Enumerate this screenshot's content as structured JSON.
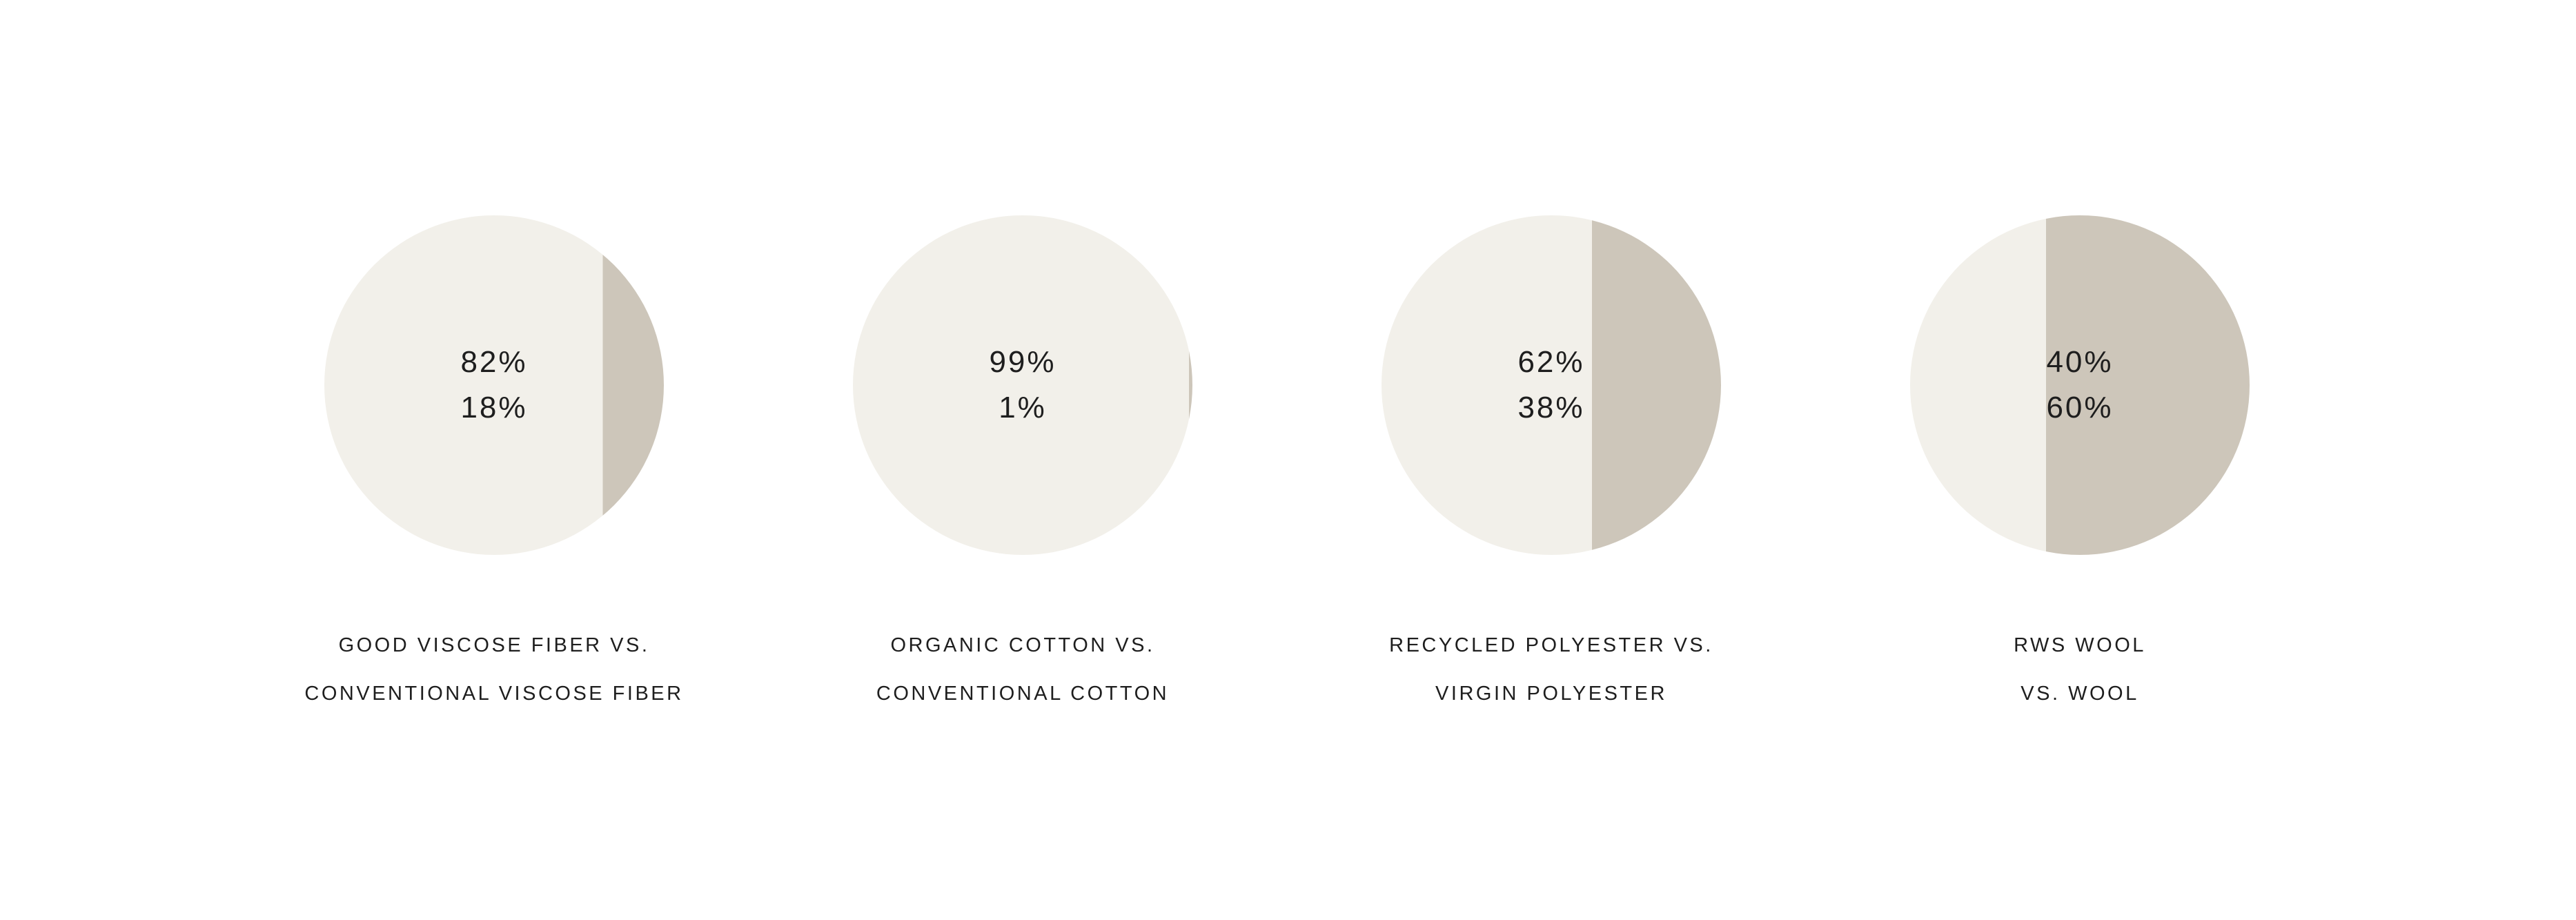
{
  "colors": {
    "background": "#ffffff",
    "segment_light": "#F2F0EA",
    "segment_dark": "#CDC6BA",
    "text": "#1e1e1e"
  },
  "chart_data": [
    {
      "type": "pie",
      "variant": "vertical-split-circle",
      "title": "GOOD VISCOSE FIBER VS. CONVENTIONAL VISCOSE FIBER",
      "categories": [
        "Good viscose fiber",
        "Conventional viscose fiber"
      ],
      "values": [
        82,
        18
      ],
      "value_labels": [
        "82%",
        "18%"
      ],
      "caption_lines": [
        "GOOD VISCOSE FIBER VS.",
        "CONVENTIONAL VISCOSE FIBER"
      ],
      "colors": [
        "#F2F0EA",
        "#CDC6BA"
      ],
      "legend": "none",
      "grid": false
    },
    {
      "type": "pie",
      "variant": "vertical-split-circle",
      "title": "ORGANIC COTTON VS. CONVENTIONAL COTTON",
      "categories": [
        "Organic cotton",
        "Conventional cotton"
      ],
      "values": [
        99,
        1
      ],
      "value_labels": [
        "99%",
        "1%"
      ],
      "caption_lines": [
        "ORGANIC COTTON VS.",
        "CONVENTIONAL COTTON"
      ],
      "colors": [
        "#F2F0EA",
        "#CDC6BA"
      ],
      "legend": "none",
      "grid": false
    },
    {
      "type": "pie",
      "variant": "vertical-split-circle",
      "title": "RECYCLED POLYESTER VS. VIRGIN POLYESTER",
      "categories": [
        "Recycled polyester",
        "Virgin polyester"
      ],
      "values": [
        62,
        38
      ],
      "value_labels": [
        "62%",
        "38%"
      ],
      "caption_lines": [
        "RECYCLED POLYESTER VS.",
        "VIRGIN POLYESTER"
      ],
      "colors": [
        "#F2F0EA",
        "#CDC6BA"
      ],
      "legend": "none",
      "grid": false
    },
    {
      "type": "pie",
      "variant": "vertical-split-circle",
      "title": "RWS WOOL VS. WOOL",
      "categories": [
        "RWS wool",
        "Wool"
      ],
      "values": [
        40,
        60
      ],
      "value_labels": [
        "40%",
        "60%"
      ],
      "caption_lines": [
        "RWS WOOL",
        "VS. WOOL"
      ],
      "colors": [
        "#F2F0EA",
        "#CDC6BA"
      ],
      "legend": "none",
      "grid": false
    }
  ]
}
